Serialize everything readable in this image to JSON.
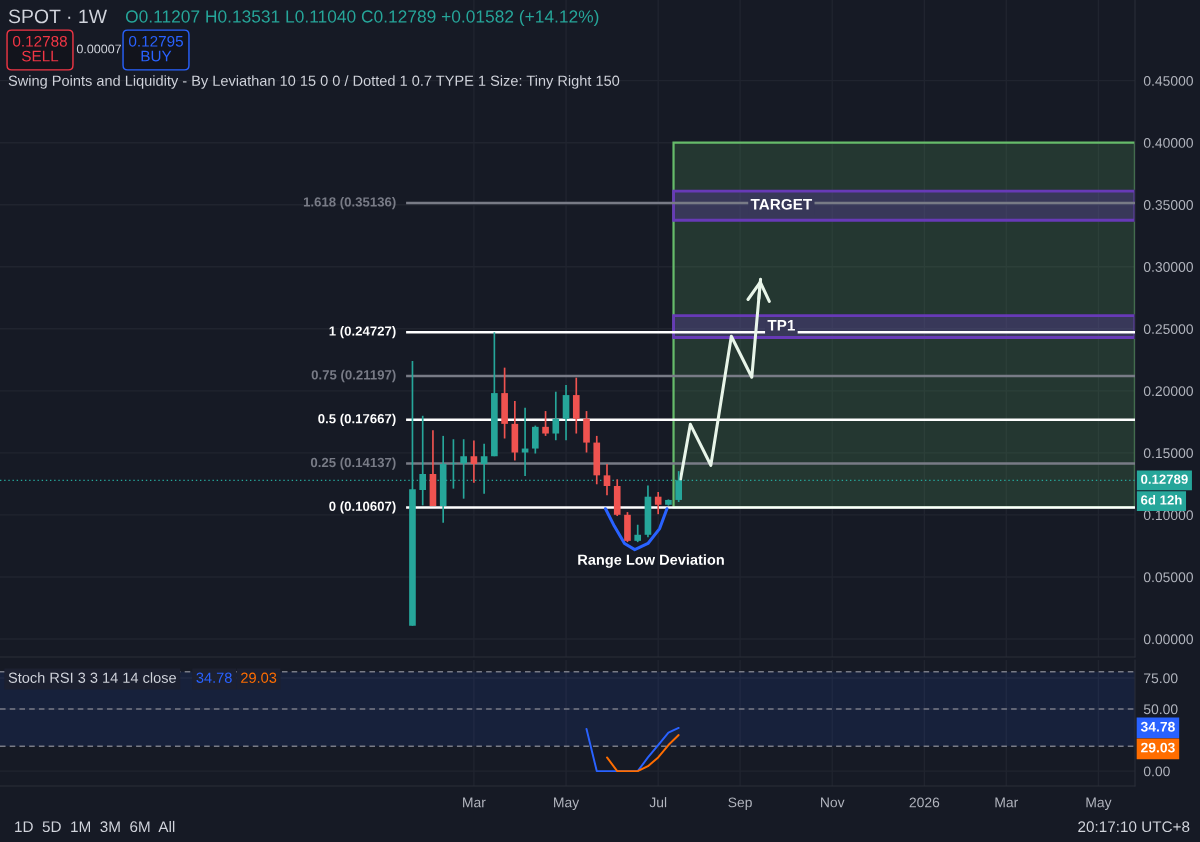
{
  "chart_data": [
    {
      "type": "candlestick",
      "title": "SPOT · 1W",
      "subtitle": "Swing Points and Liquidity - By Leviathan 10 15 0 0 / Dotted 1 0.7 TYPE 1 Size: Tiny Right 150",
      "x": [
        "2025-01-20",
        "2025-01-27",
        "2025-02-03",
        "2025-02-10",
        "2025-02-17",
        "2025-02-24",
        "2025-03-03",
        "2025-03-10",
        "2025-03-17",
        "2025-03-24",
        "2025-03-31",
        "2025-04-07",
        "2025-04-14",
        "2025-04-21",
        "2025-04-28",
        "2025-05-05",
        "2025-05-12",
        "2025-05-19",
        "2025-05-26",
        "2025-06-02",
        "2025-06-09",
        "2025-06-16",
        "2025-06-23",
        "2025-06-30",
        "2025-07-07",
        "2025-07-14",
        "2025-07-21"
      ],
      "ohlc": [
        [
          0.0107,
          0.224,
          0.0107,
          0.1207
        ],
        [
          0.1201,
          0.1799,
          0.1077,
          0.133
        ],
        [
          0.133,
          0.1683,
          0.1072,
          0.1072
        ],
        [
          0.1072,
          0.1637,
          0.0937,
          0.1411
        ],
        [
          0.1411,
          0.161,
          0.1212,
          0.1415
        ],
        [
          0.1415,
          0.161,
          0.1131,
          0.1473
        ],
        [
          0.1473,
          0.16,
          0.126,
          0.1411
        ],
        [
          0.1411,
          0.1573,
          0.1171,
          0.1473
        ],
        [
          0.1473,
          0.2472,
          0.1473,
          0.1982
        ],
        [
          0.1982,
          0.2187,
          0.1616,
          0.1734
        ],
        [
          0.1734,
          0.1918,
          0.1438,
          0.1503
        ],
        [
          0.1503,
          0.1864,
          0.1314,
          0.1535
        ],
        [
          0.1535,
          0.172,
          0.1495,
          0.171
        ],
        [
          0.171,
          0.1837,
          0.1637,
          0.1656
        ],
        [
          0.1656,
          0.1993,
          0.1602,
          0.1775
        ],
        [
          0.1775,
          0.2047,
          0.1602,
          0.1966
        ],
        [
          0.1966,
          0.2106,
          0.1656,
          0.1775
        ],
        [
          0.1775,
          0.1837,
          0.1503,
          0.1583
        ],
        [
          0.1583,
          0.1637,
          0.1247,
          0.1319
        ],
        [
          0.1319,
          0.1411,
          0.1158,
          0.1233
        ],
        [
          0.1233,
          0.1287,
          0.0991,
          0.1001
        ],
        [
          0.1001,
          0.1023,
          0.0781,
          0.0791
        ],
        [
          0.0791,
          0.0921,
          0.0781,
          0.084
        ],
        [
          0.084,
          0.1238,
          0.0821,
          0.1147
        ],
        [
          0.1147,
          0.1185,
          0.1006,
          0.1082
        ],
        [
          0.1082,
          0.1125,
          0.1075,
          0.11207
        ],
        [
          0.11207,
          0.13531,
          0.1104,
          0.12789
        ]
      ],
      "colors": [
        "#26a69a",
        "#26a69a",
        "#ef5350",
        "#26a69a",
        "#26a69a",
        "#26a69a",
        "#ef5350",
        "#26a69a",
        "#26a69a",
        "#ef5350",
        "#ef5350",
        "#26a69a",
        "#26a69a",
        "#ef5350",
        "#26a69a",
        "#26a69a",
        "#ef5350",
        "#ef5350",
        "#ef5350",
        "#ef5350",
        "#ef5350",
        "#ef5350",
        "#26a69a",
        "#26a69a",
        "#ef5350",
        "#26a69a",
        "#26a69a"
      ],
      "series": [
        {
          "type": "line",
          "color": "#e8f5e9",
          "x": [
            "2025-07-22",
            "2025-07-29",
            "2025-08-12",
            "2025-08-26",
            "2025-09-09",
            "2025-09-15"
          ],
          "values": [
            0.127,
            0.173,
            0.14,
            0.244,
            0.211,
            0.29
          ]
        },
        {
          "type": "line",
          "color": "#2962ff",
          "x": [
            "2025-06-01",
            "2025-06-07",
            "2025-06-14",
            "2025-06-21",
            "2025-06-30",
            "2025-07-08",
            "2025-07-13"
          ],
          "values": [
            0.105,
            0.091,
            0.077,
            0.072,
            0.077,
            0.089,
            0.105
          ]
        }
      ],
      "xlim": [
        "2024-04-13",
        "2026-05-29"
      ],
      "xticks": [
        {
          "value": "2025-03-03",
          "label": null
        },
        {
          "value": "2025-05-05",
          "label": null
        },
        {
          "value": "2025-07-07",
          "label": null
        },
        {
          "value": "2025-09-01",
          "label": null
        },
        {
          "value": "2025-11-03",
          "label": null
        },
        {
          "value": "2026-01-05",
          "label": null
        },
        {
          "value": "2026-03-02",
          "label": null
        },
        {
          "value": "2026-05-04",
          "label": null
        }
      ],
      "ylim": [
        -0.0145,
        0.515
      ],
      "yticks": [
        {
          "value": 0,
          "label": "0.00000"
        },
        {
          "value": 0.05,
          "label": "0.05000"
        },
        {
          "value": 0.1,
          "label": "0.10000"
        },
        {
          "value": 0.15,
          "label": "0.15000"
        },
        {
          "value": 0.2,
          "label": "0.20000"
        },
        {
          "value": 0.25,
          "label": "0.25000"
        },
        {
          "value": 0.3,
          "label": "0.30000"
        },
        {
          "value": 0.35,
          "label": "0.35000"
        },
        {
          "value": 0.4,
          "label": "0.40000"
        },
        {
          "value": 0.45,
          "label": "0.45000"
        }
      ],
      "tick_labels": "y",
      "grid": true,
      "bands": [
        {
          "axis": "y",
          "from": 0.106,
          "to": 0.4,
          "color": "#66bb6a"
        },
        {
          "axis": "y",
          "from": 0.3375,
          "to": 0.361,
          "label": "TARGET",
          "color": "#673ab7"
        },
        {
          "axis": "y",
          "from": 0.243,
          "to": 0.2606,
          "label": "TP1",
          "color": "#673ab7"
        }
      ],
      "ref_lines": [
        {
          "axis": "y",
          "value": 0.35136,
          "label": "1.618 (0.35136)",
          "color": "#787b86"
        },
        {
          "axis": "y",
          "value": 0.24727,
          "label": "1 (0.24727)",
          "color": "#ffffff"
        },
        {
          "axis": "y",
          "value": 0.21197,
          "label": "0.75 (0.21197)",
          "color": "#787b86"
        },
        {
          "axis": "y",
          "value": 0.17667,
          "label": "0.5 (0.17667)",
          "color": "#ffffff"
        },
        {
          "axis": "y",
          "value": 0.14137,
          "label": "0.25 (0.14137)",
          "color": "#787b86"
        },
        {
          "axis": "y",
          "value": 0.10607,
          "label": "0 (0.10607)",
          "color": "#ffffff"
        },
        {
          "axis": "y",
          "value": 0.12789,
          "label": "0.12789",
          "color": "#26a69a",
          "line_style": "dotted"
        }
      ],
      "annotations": [
        "O0.11207 H0.13531 L0.11040 C0.12789 +0.01582 (+14.12%)",
        "0.12788\nSELL",
        "0.00007",
        "0.12795\nBUY",
        "6d 12h",
        "Range Low Deviation",
        "1D  5D  1M  3M  6M  All",
        "20:17:10 UTC+8"
      ]
    },
    {
      "type": "line",
      "title": "Stoch RSI 3 3 14 14 close",
      "series": [
        {
          "color": "#2962ff",
          "x": [
            "2025-05-19",
            "2025-05-26",
            "2025-06-02",
            "2025-06-09",
            "2025-06-16",
            "2025-06-23",
            "2025-06-30",
            "2025-07-07",
            "2025-07-14",
            "2025-07-21"
          ],
          "values": [
            34,
            0,
            0,
            0,
            0,
            0,
            11,
            21,
            31,
            34.78
          ]
        },
        {
          "color": "#ff6d00",
          "x": [
            "2025-06-02",
            "2025-06-09",
            "2025-06-16",
            "2025-06-23",
            "2025-06-30",
            "2025-07-07",
            "2025-07-14",
            "2025-07-21"
          ],
          "values": [
            11,
            0,
            0,
            0,
            4,
            11,
            21,
            29.03
          ]
        }
      ],
      "xlim": [
        "2024-04-13",
        "2026-05-29"
      ],
      "xticks": [
        {
          "value": "2025-03-03",
          "label": "Mar"
        },
        {
          "value": "2025-05-05",
          "label": "May"
        },
        {
          "value": "2025-07-07",
          "label": "Jul"
        },
        {
          "value": "2025-09-01",
          "label": "Sep"
        },
        {
          "value": "2025-11-03",
          "label": "Nov"
        },
        {
          "value": "2026-01-05",
          "label": "2026"
        },
        {
          "value": "2026-03-02",
          "label": "Mar"
        },
        {
          "value": "2026-05-04",
          "label": "May"
        }
      ],
      "ylim": [
        -12,
        89.5
      ],
      "yticks": [
        {
          "value": 0,
          "label": "0.00"
        },
        {
          "value": 50,
          "label": "50.00"
        },
        {
          "value": 75,
          "label": "75.00"
        }
      ],
      "grid": true,
      "bands": [
        {
          "axis": "y",
          "from": 20,
          "to": 80,
          "color": "#2962ff"
        }
      ],
      "ref_lines": [
        {
          "axis": "y",
          "value": 80,
          "color": "#787b86",
          "line_style": "dashed"
        },
        {
          "axis": "y",
          "value": 50,
          "color": "#787b86",
          "line_style": "dashed"
        },
        {
          "axis": "y",
          "value": 20,
          "color": "#787b86",
          "line_style": "dashed"
        }
      ],
      "annotations": [
        "34.78",
        "29.03",
        "34.78",
        "29.03"
      ]
    }
  ]
}
